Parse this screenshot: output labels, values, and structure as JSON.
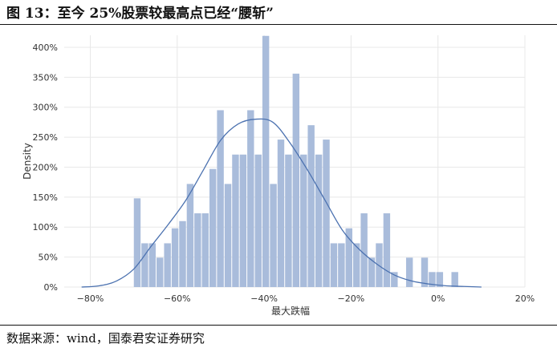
{
  "figure": {
    "title": "图 13：至今 25%股票较最高点已经“腰斩”",
    "source": "数据来源：wind，国泰君安证券研究"
  },
  "chart_data": {
    "type": "bar",
    "subtype": "histogram_with_kde",
    "xlabel": "最大跌幅",
    "ylabel": "Density",
    "xlim": [
      -0.86,
      0.2
    ],
    "ylim": [
      0,
      4.2
    ],
    "x_ticks": [
      -0.8,
      -0.6,
      -0.4,
      -0.2,
      0.0,
      0.2
    ],
    "x_tick_labels": [
      "−80%",
      "−60%",
      "−40%",
      "−20%",
      "0%",
      "20%"
    ],
    "y_ticks": [
      0,
      0.5,
      1.0,
      1.5,
      2.0,
      2.5,
      3.0,
      3.5,
      4.0
    ],
    "y_tick_labels": [
      "0%",
      "50%",
      "100%",
      "150%",
      "200%",
      "250%",
      "300%",
      "350%",
      "400%"
    ],
    "grid": true,
    "bin_width": 0.0174,
    "bin_start": -0.6998,
    "values": [
      1.48,
      0.73,
      0.73,
      0.49,
      0.73,
      0.98,
      1.1,
      1.72,
      1.23,
      1.23,
      1.97,
      2.95,
      1.72,
      2.21,
      2.21,
      2.95,
      2.21,
      4.19,
      1.72,
      2.46,
      2.21,
      3.56,
      2.21,
      2.7,
      2.21,
      2.46,
      0.73,
      0.73,
      0.98,
      0.73,
      1.23,
      0.49,
      0.73,
      1.23,
      0.25,
      0.0,
      0.49,
      0.0,
      0.49,
      0.25,
      0.25,
      0.0,
      0.25
    ],
    "kde": {
      "x": [
        -0.82,
        -0.78,
        -0.74,
        -0.7,
        -0.66,
        -0.62,
        -0.58,
        -0.54,
        -0.5,
        -0.46,
        -0.42,
        -0.38,
        -0.34,
        -0.3,
        -0.26,
        -0.22,
        -0.18,
        -0.14,
        -0.1,
        -0.06,
        -0.02,
        0.02,
        0.06,
        0.1
      ],
      "y": [
        0.0,
        0.02,
        0.1,
        0.3,
        0.68,
        1.05,
        1.45,
        1.95,
        2.45,
        2.72,
        2.8,
        2.75,
        2.4,
        1.95,
        1.45,
        0.95,
        0.62,
        0.38,
        0.2,
        0.1,
        0.05,
        0.02,
        0.01,
        0.0
      ]
    },
    "colors": {
      "bars": "#a9bcdb",
      "kde": "#4c72b0",
      "grid": "#e8e8e8"
    }
  }
}
